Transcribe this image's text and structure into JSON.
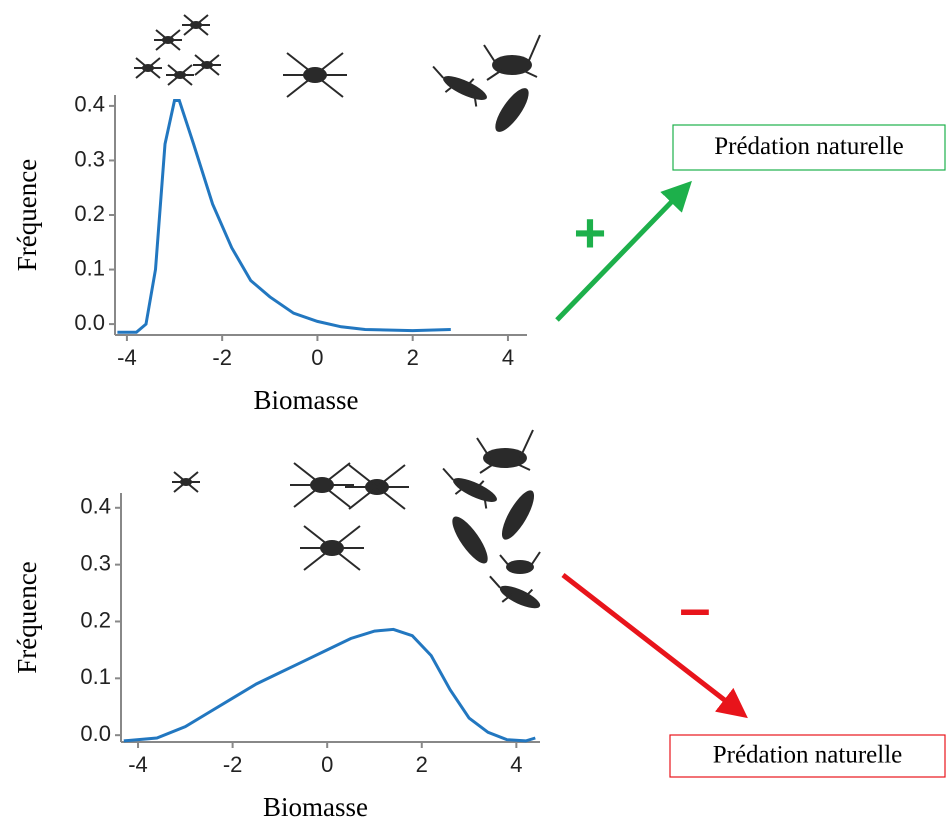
{
  "chart_data": [
    {
      "type": "line",
      "xlabel": "Biomasse",
      "ylabel": "Fréquence",
      "x": [
        -4.2,
        -3.8,
        -3.6,
        -3.4,
        -3.2,
        -3.0,
        -2.9,
        -2.6,
        -2.2,
        -1.8,
        -1.4,
        -1.0,
        -0.5,
        0,
        0.5,
        1.0,
        2.0,
        2.8
      ],
      "values": [
        -0.015,
        -0.015,
        0.0,
        0.1,
        0.33,
        0.41,
        0.41,
        0.33,
        0.22,
        0.14,
        0.08,
        0.05,
        0.02,
        0.005,
        -0.005,
        -0.01,
        -0.012,
        -0.01
      ],
      "color": "#2277c0",
      "xlim": [
        -4.25,
        4.4
      ],
      "xticks": [
        -4,
        -2,
        0,
        2,
        4
      ],
      "ylim": [
        -0.02,
        0.42
      ],
      "yticks": [
        {
          "value": 0,
          "label": "0.0"
        },
        0.1,
        0.2,
        0.3,
        0.4
      ],
      "effect": "+",
      "effect_color": "#1db04b",
      "outcome": "Prédation naturelle"
    },
    {
      "type": "line",
      "xlabel": "Biomasse",
      "ylabel": "Fréquence",
      "x": [
        -4.3,
        -3.6,
        -3.0,
        -2.5,
        -2.0,
        -1.5,
        -1.0,
        -0.5,
        0,
        0.5,
        1.0,
        1.4,
        1.8,
        2.2,
        2.6,
        3.0,
        3.4,
        3.8,
        4.2,
        4.4
      ],
      "values": [
        -0.01,
        -0.005,
        0.015,
        0.04,
        0.065,
        0.09,
        0.11,
        0.13,
        0.15,
        0.17,
        0.183,
        0.186,
        0.175,
        0.14,
        0.08,
        0.03,
        0.005,
        -0.008,
        -0.01,
        -0.005
      ],
      "color": "#2277c0",
      "xlim": [
        -4.36,
        4.5
      ],
      "xticks": [
        -4,
        -2,
        0,
        2,
        4
      ],
      "ylim": [
        -0.012,
        0.426
      ],
      "yticks": [
        {
          "value": 0,
          "label": "0.0"
        },
        0.1,
        0.2,
        0.3,
        0.4
      ],
      "effect": "–",
      "effect_color": "#e8141b",
      "outcome": "Prédation naturelle"
    }
  ]
}
